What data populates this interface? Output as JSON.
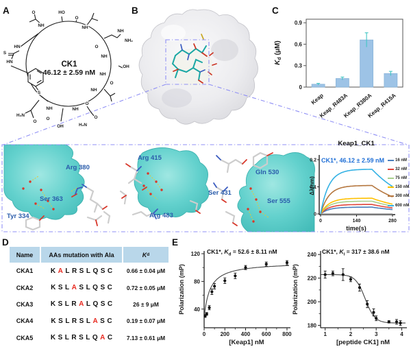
{
  "figure": {
    "panel_labels": {
      "A": "A",
      "B": "B",
      "C": "C",
      "D": "D",
      "E": "E"
    }
  },
  "panel_a": {
    "name": "CK1",
    "affinity": "46.12 ± 2.59 nM",
    "ring_labels": [
      "NH",
      "O",
      "HO",
      "O",
      "NH",
      "NH",
      "NH₂",
      "O",
      "NH",
      "OH",
      "NH",
      "O",
      "NH",
      "O",
      "NH",
      "O",
      "H₂N",
      "OH",
      "O",
      "NH",
      "H₂N",
      "O",
      "HN",
      "S",
      "HN",
      "S"
    ]
  },
  "closeups": {
    "label_color": "#2a5cab",
    "p1": {
      "residues": [
        "Arg 380",
        "Ser 363",
        "Tyr 334"
      ]
    },
    "p2": {
      "residues": [
        "Arg 415",
        "Arg 483"
      ]
    },
    "p3": {
      "residues": [
        "Gln 530",
        "Ser 431",
        "Ser 555"
      ]
    }
  },
  "panel_d": {
    "table": {
      "col_name": "Name",
      "col_seq": "AAs mutation with Ala",
      "col_kd_parts": {
        "k": "K",
        "sub": "d"
      },
      "header_bg": "#b9d7ea",
      "mutation_color": "#e8281e",
      "rows": [
        {
          "name": "CKA1",
          "seq": "KALRSLQSC",
          "mut_index": 1,
          "kd": "0.66 ± 0.04 μM"
        },
        {
          "name": "CKA2",
          "seq": "KSLASLQSC",
          "mut_index": 3,
          "kd": "0.72 ± 0.05 μM"
        },
        {
          "name": "CKA3",
          "seq": "KSLRALQSC",
          "mut_index": 4,
          "kd": "26 ± 9 μM"
        },
        {
          "name": "CKA4",
          "seq": "KSLRSLASC",
          "mut_index": 6,
          "kd": "0.19 ± 0.07 μM"
        },
        {
          "name": "CKA5",
          "seq": "KSLRSLQAC",
          "mut_index": 7,
          "kd": "7.13 ± 0.61 μM"
        }
      ]
    }
  },
  "chart_data": [
    {
      "id": "kd_mutants_bar",
      "type": "bar",
      "ylabel_parts": {
        "k": "K",
        "sub": "d",
        "rest": " (μM)"
      },
      "categories": [
        "Keap",
        "Keap_R483A",
        "Keap_R380A",
        "Keap_R415A"
      ],
      "values": [
        0.04,
        0.12,
        0.66,
        0.19
      ],
      "errors": [
        0.012,
        0.02,
        0.1,
        0.03
      ],
      "yticks": [
        0,
        0.3,
        0.6,
        0.9
      ],
      "ytick_labels": [
        "0",
        "0.3",
        "0.6",
        "0.9"
      ],
      "ylim": [
        0,
        0.95
      ],
      "bar_color": "#9dc3e6",
      "bar_edge": "#8ab4d9",
      "error_color": "#40c6c4"
    },
    {
      "id": "bli_sensorgram",
      "type": "line",
      "title": "Keap1_CK1",
      "annotation": "CK1*, 46.12 ± 2.59 nM",
      "annotation_color": "#1f6fd6",
      "xlabel": "time(s)",
      "ylabel": "Δλ(nm)",
      "xticks": [
        0,
        140,
        280
      ],
      "yticks": [
        0,
        0.1,
        0.2
      ],
      "ytick_labels": [
        "0",
        "0.1",
        "0.2"
      ],
      "xlim": [
        0,
        280
      ],
      "ylim": [
        0,
        0.21
      ],
      "association_end_s": 200,
      "baseline_color": "#a0a0a0",
      "series": [
        {
          "name": "16 nM",
          "color": "#4a7ebb",
          "plateau": 0.025,
          "end": 0.016
        },
        {
          "name": "32 nM",
          "color": "#e0453b",
          "plateau": 0.035,
          "end": 0.022
        },
        {
          "name": "75 nM",
          "color": "#a8d08d",
          "plateau": 0.047,
          "end": 0.029
        },
        {
          "name": "150 nM",
          "color": "#ffc000",
          "plateau": 0.058,
          "end": 0.036
        },
        {
          "name": "300 nM",
          "color": "#b5773f",
          "plateau": 0.105,
          "end": 0.063
        },
        {
          "name": "600 nM",
          "color": "#33b1e4",
          "plateau": 0.165,
          "end": 0.101
        }
      ]
    },
    {
      "id": "fp_saturation",
      "type": "scatter",
      "title_parts": {
        "prefix": "CK1*, ",
        "k": "K",
        "sub": "d",
        "rest": " = 52.6 ± 8.11 nM"
      },
      "xlabel": "[Keap1] nM",
      "ylabel": "Polarization (mP)",
      "xticks": [
        0,
        200,
        400,
        600,
        800
      ],
      "yticks": [
        40,
        80,
        120
      ],
      "xlim": [
        0,
        820
      ],
      "ylim": [
        13,
        124
      ],
      "points": [
        [
          10,
          30
        ],
        [
          25,
          33
        ],
        [
          50,
          42
        ],
        [
          75,
          65
        ],
        [
          100,
          73
        ],
        [
          200,
          81
        ],
        [
          300,
          88
        ],
        [
          400,
          100
        ],
        [
          600,
          105
        ],
        [
          800,
          107
        ]
      ],
      "errors": [
        2,
        2,
        3,
        4,
        4,
        4,
        4,
        3,
        3,
        3
      ],
      "fit": {
        "kind": "hyperbola",
        "y0": 27,
        "amp": 81,
        "k": 55
      }
    },
    {
      "id": "fp_competition",
      "type": "scatter",
      "title_parts": {
        "prefix": "CK1*, ",
        "k": "K",
        "sub": "i",
        "rest": " = 317 ± 38.6 nM"
      },
      "xlabel": "[peptide CK1] nM",
      "ylabel": "Polarization (mP)",
      "xticks": [
        1,
        2,
        3,
        4
      ],
      "yticks": [
        180,
        200,
        220,
        240
      ],
      "xlim": [
        0.82,
        4.15
      ],
      "ylim": [
        178,
        243
      ],
      "points": [
        [
          1,
          223
        ],
        [
          1.3,
          224
        ],
        [
          1.7,
          223
        ],
        [
          2,
          219
        ],
        [
          2.35,
          212
        ],
        [
          2.65,
          198
        ],
        [
          2.9,
          191
        ],
        [
          3,
          186
        ],
        [
          3.5,
          183
        ],
        [
          3.8,
          183
        ],
        [
          3.95,
          182
        ]
      ],
      "errors": [
        3,
        2,
        5,
        2,
        3,
        3,
        3,
        2,
        1,
        2,
        2
      ],
      "fit": {
        "kind": "sigmoid",
        "top": 223,
        "bottom": 182,
        "mid": 2.57,
        "slope": 2.3
      }
    }
  ]
}
